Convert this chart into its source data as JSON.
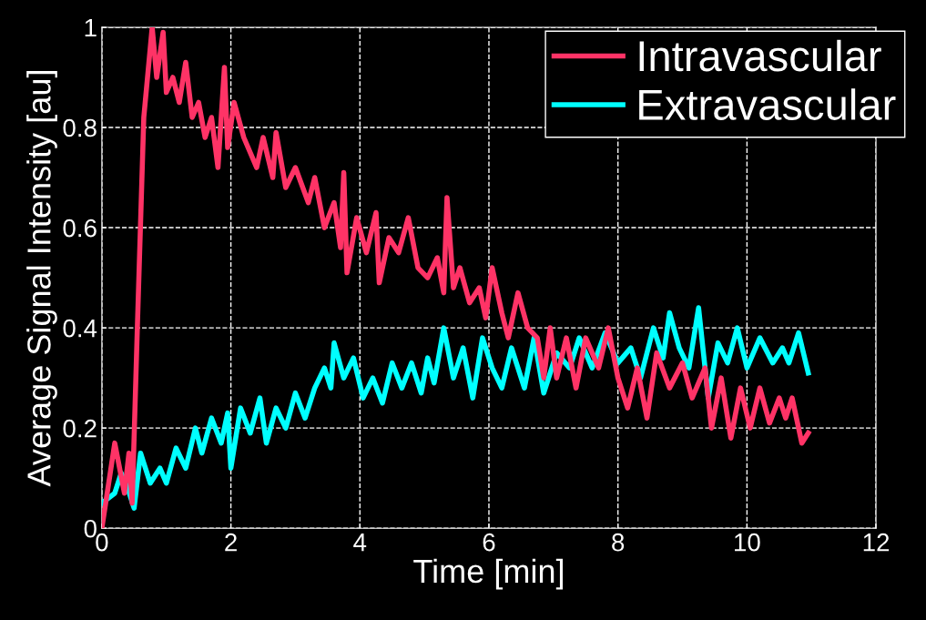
{
  "chart_data": {
    "type": "line",
    "xlabel": "Time [min]",
    "ylabel": "Average Signal Intensity [au]",
    "xlim": [
      0,
      12
    ],
    "xticks": [
      0,
      2,
      4,
      6,
      8,
      10,
      12
    ],
    "ylim": [
      0,
      1
    ],
    "yticks": [
      0,
      0.2,
      0.4,
      0.6,
      0.8,
      1
    ],
    "grid": true,
    "legend": "top right",
    "line_style": "solid",
    "marker": "none",
    "series": [
      {
        "name": "Intravascular",
        "color": "#ff3366",
        "x": [
          0,
          0.2,
          0.35,
          0.42,
          0.47,
          0.55,
          0.65,
          0.78,
          0.85,
          0.95,
          1.0,
          1.1,
          1.2,
          1.3,
          1.4,
          1.5,
          1.6,
          1.7,
          1.8,
          1.9,
          1.95,
          2.05,
          2.2,
          2.4,
          2.5,
          2.65,
          2.7,
          2.85,
          3.0,
          3.2,
          3.3,
          3.45,
          3.6,
          3.7,
          3.75,
          3.8,
          3.95,
          4.1,
          4.25,
          4.3,
          4.45,
          4.6,
          4.75,
          4.9,
          5.05,
          5.2,
          5.3,
          5.35,
          5.45,
          5.55,
          5.7,
          5.85,
          5.95,
          6.05,
          6.2,
          6.3,
          6.45,
          6.6,
          6.75,
          6.85,
          6.95,
          7.05,
          7.2,
          7.35,
          7.5,
          7.7,
          7.85,
          8.0,
          8.15,
          8.3,
          8.45,
          8.6,
          8.8,
          9.0,
          9.15,
          9.35,
          9.45,
          9.6,
          9.75,
          9.9,
          10.05,
          10.2,
          10.35,
          10.5,
          10.6,
          10.7,
          10.85,
          10.95
        ],
        "values": [
          0,
          0.17,
          0.07,
          0.15,
          0.05,
          0.4,
          0.82,
          1.0,
          0.9,
          0.99,
          0.87,
          0.9,
          0.85,
          0.93,
          0.82,
          0.85,
          0.78,
          0.82,
          0.72,
          0.92,
          0.76,
          0.85,
          0.78,
          0.72,
          0.78,
          0.7,
          0.79,
          0.68,
          0.72,
          0.65,
          0.7,
          0.6,
          0.65,
          0.56,
          0.71,
          0.51,
          0.62,
          0.55,
          0.63,
          0.49,
          0.58,
          0.55,
          0.62,
          0.52,
          0.5,
          0.54,
          0.47,
          0.66,
          0.48,
          0.52,
          0.45,
          0.48,
          0.42,
          0.52,
          0.43,
          0.38,
          0.47,
          0.4,
          0.38,
          0.3,
          0.4,
          0.3,
          0.38,
          0.28,
          0.38,
          0.32,
          0.4,
          0.3,
          0.24,
          0.32,
          0.22,
          0.35,
          0.28,
          0.33,
          0.26,
          0.32,
          0.2,
          0.3,
          0.18,
          0.28,
          0.2,
          0.28,
          0.21,
          0.26,
          0.22,
          0.26,
          0.17,
          0.19
        ]
      },
      {
        "name": "Extravascular",
        "color": "#00ffff",
        "x": [
          0,
          0.2,
          0.3,
          0.4,
          0.5,
          0.6,
          0.75,
          0.9,
          1.0,
          1.15,
          1.3,
          1.45,
          1.55,
          1.7,
          1.85,
          1.95,
          2.0,
          2.15,
          2.3,
          2.45,
          2.55,
          2.7,
          2.85,
          3.0,
          3.15,
          3.3,
          3.45,
          3.55,
          3.6,
          3.75,
          3.9,
          4.05,
          4.2,
          4.35,
          4.5,
          4.65,
          4.8,
          4.95,
          5.05,
          5.15,
          5.3,
          5.45,
          5.6,
          5.75,
          5.9,
          6.05,
          6.2,
          6.35,
          6.55,
          6.7,
          6.85,
          7.05,
          7.25,
          7.4,
          7.6,
          7.8,
          8.0,
          8.2,
          8.35,
          8.55,
          8.7,
          8.8,
          8.95,
          9.1,
          9.25,
          9.4,
          9.55,
          9.7,
          9.85,
          10.0,
          10.2,
          10.4,
          10.55,
          10.65,
          10.8,
          10.95
        ],
        "values": [
          0.05,
          0.07,
          0.11,
          0.08,
          0.04,
          0.15,
          0.09,
          0.12,
          0.09,
          0.16,
          0.12,
          0.2,
          0.15,
          0.22,
          0.17,
          0.23,
          0.12,
          0.24,
          0.19,
          0.26,
          0.17,
          0.24,
          0.2,
          0.27,
          0.22,
          0.28,
          0.32,
          0.28,
          0.37,
          0.3,
          0.34,
          0.26,
          0.3,
          0.25,
          0.33,
          0.28,
          0.33,
          0.27,
          0.34,
          0.29,
          0.4,
          0.3,
          0.36,
          0.26,
          0.38,
          0.32,
          0.28,
          0.36,
          0.28,
          0.38,
          0.27,
          0.35,
          0.32,
          0.38,
          0.32,
          0.39,
          0.33,
          0.36,
          0.3,
          0.4,
          0.34,
          0.43,
          0.36,
          0.32,
          0.44,
          0.26,
          0.37,
          0.33,
          0.4,
          0.32,
          0.38,
          0.33,
          0.36,
          0.33,
          0.39,
          0.31
        ]
      }
    ]
  }
}
